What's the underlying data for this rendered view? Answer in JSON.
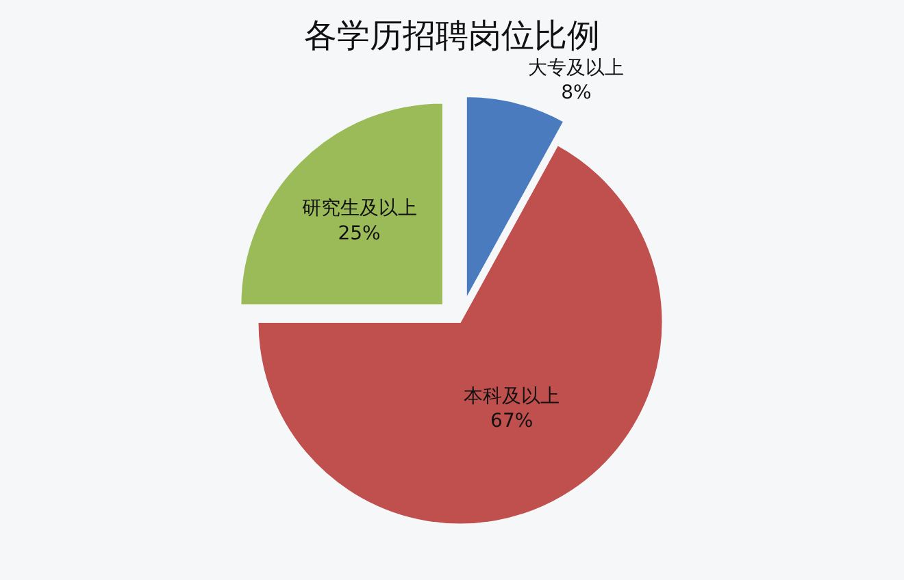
{
  "chart_data": {
    "type": "pie",
    "title": "各学历招聘岗位比例",
    "categories": [
      "大专及以上",
      "本科及以上",
      "研究生及以上"
    ],
    "values": [
      8,
      67,
      25
    ],
    "value_labels": [
      "8%",
      "67%",
      "25%"
    ],
    "colors": [
      "#4a7bbf",
      "#c0504d",
      "#9bbb59"
    ]
  }
}
